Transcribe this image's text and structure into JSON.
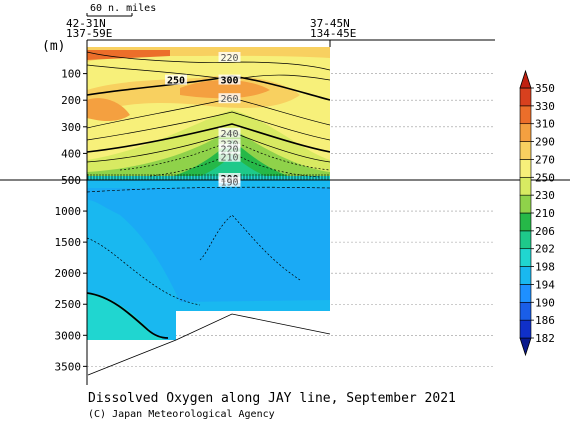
{
  "chart_data": {
    "type": "heatmap",
    "title": "Dissolved Oxygen along JAY line, September 2021",
    "credit": "(C) Japan Meteorological Agency",
    "scale_label": "60 n. miles",
    "ylabel": "(m)",
    "station_labels": [
      {
        "lat": "42-31N",
        "lon": "137-59E"
      },
      {
        "lat": "37-45N",
        "lon": "134-45E"
      }
    ],
    "y_ticks_upper": [
      100,
      200,
      300,
      400,
      500
    ],
    "y_ticks_lower": [
      1000,
      1500,
      2000,
      2500,
      3000,
      3500
    ],
    "ylim_upper": [
      0,
      500
    ],
    "ylim_lower": [
      500,
      3800
    ],
    "colorbar_levels": [
      182,
      186,
      190,
      194,
      198,
      202,
      206,
      210,
      230,
      250,
      270,
      290,
      310,
      330,
      350
    ],
    "colorbar_colors": [
      "#0a1a8c",
      "#1030c8",
      "#1a5ee8",
      "#1e90ff",
      "#19b8f0",
      "#20d6d0",
      "#1ec98a",
      "#26b848",
      "#8fd24a",
      "#d8ea62",
      "#f7f07a",
      "#f8d060",
      "#f4a040",
      "#ec6e2a",
      "#d8401e",
      "#c02010"
    ],
    "contour_labels": [
      {
        "value": "220",
        "x_km": 0.57,
        "depth": 45
      },
      {
        "value": "300",
        "x_km": 0.57,
        "depth": 130
      },
      {
        "value": "250",
        "x_km": 0.35,
        "depth": 130
      },
      {
        "value": "260",
        "x_km": 0.57,
        "depth": 200
      },
      {
        "value": "240",
        "x_km": 0.57,
        "depth": 330
      },
      {
        "value": "230",
        "x_km": 0.57,
        "depth": 370
      },
      {
        "value": "220",
        "x_km": 0.57,
        "depth": 390
      },
      {
        "value": "210",
        "x_km": 0.57,
        "depth": 420
      },
      {
        "value": "200",
        "x_km": 0.57,
        "depth": 500
      },
      {
        "value": "190",
        "x_km": 0.57,
        "depth": 560
      }
    ]
  }
}
